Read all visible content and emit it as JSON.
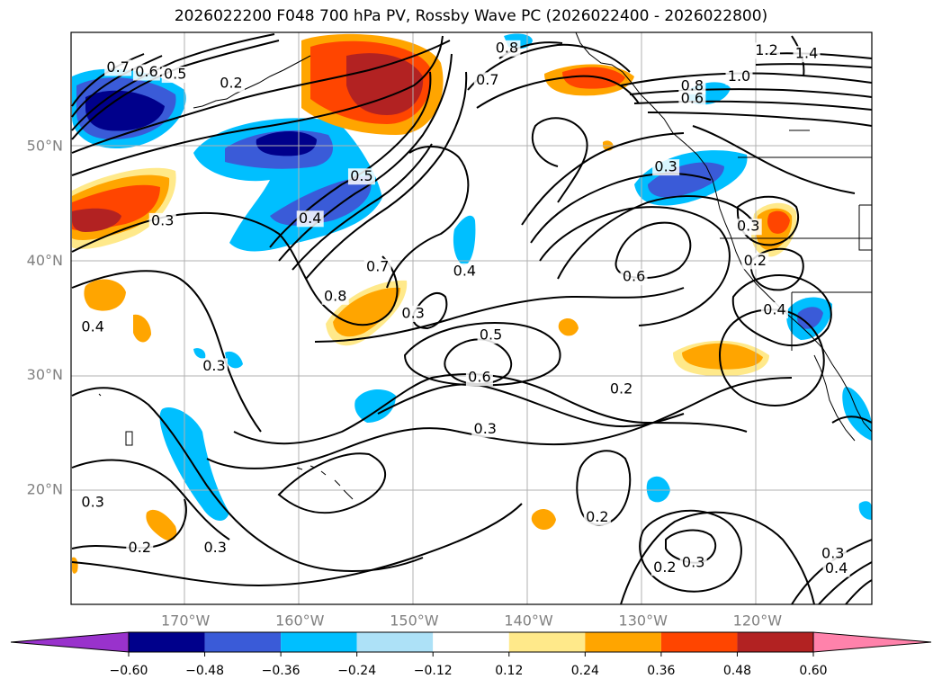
{
  "title": "2026022200 F048 700 hPa PV, Rossby Wave PC (2026022400 - 2026022800)",
  "lat_labels": [
    {
      "lat": 50,
      "label": "50°N"
    },
    {
      "lat": 40,
      "label": "40°N"
    },
    {
      "lat": 30,
      "label": "30°N"
    },
    {
      "lat": 20,
      "label": "20°N"
    }
  ],
  "lon_labels": [
    {
      "lon": -170,
      "label": "170°W"
    },
    {
      "lon": -160,
      "label": "160°W"
    },
    {
      "lon": -150,
      "label": "150°W"
    },
    {
      "lon": -140,
      "label": "140°W"
    },
    {
      "lon": -130,
      "label": "130°W"
    },
    {
      "lon": -120,
      "label": "120°W"
    }
  ],
  "contour_labels": [
    {
      "text": "0.7",
      "lon": -175.9,
      "lat": 56.9
    },
    {
      "text": "0.6",
      "lon": -173.4,
      "lat": 56.5
    },
    {
      "text": "0.5",
      "lon": -170.9,
      "lat": 56.3
    },
    {
      "text": "0.2",
      "lon": -166.0,
      "lat": 55.5
    },
    {
      "text": "0.5",
      "lon": -154.6,
      "lat": 47.4
    },
    {
      "text": "0.4",
      "lon": -159.1,
      "lat": 43.7
    },
    {
      "text": "0.3",
      "lon": -172.0,
      "lat": 43.5
    },
    {
      "text": "0.7",
      "lon": -153.2,
      "lat": 39.5
    },
    {
      "text": "0.8",
      "lon": -156.9,
      "lat": 36.9
    },
    {
      "text": "0.3",
      "lon": -150.1,
      "lat": 35.4
    },
    {
      "text": "0.4",
      "lon": -145.6,
      "lat": 39.1
    },
    {
      "text": "0.5",
      "lon": -143.3,
      "lat": 33.5
    },
    {
      "text": "0.6",
      "lon": -144.3,
      "lat": 29.8
    },
    {
      "text": "0.3",
      "lon": -143.8,
      "lat": 25.3
    },
    {
      "text": "0.4",
      "lon": -178.1,
      "lat": 34.2
    },
    {
      "text": "0.3",
      "lon": -167.5,
      "lat": 30.8
    },
    {
      "text": "0.3",
      "lon": -178.1,
      "lat": 18.9
    },
    {
      "text": "0.2",
      "lon": -174.0,
      "lat": 14.9
    },
    {
      "text": "0.3",
      "lon": -167.4,
      "lat": 14.9
    },
    {
      "text": "0.8",
      "lon": -141.9,
      "lat": 58.6
    },
    {
      "text": "0.7",
      "lon": -143.6,
      "lat": 55.8
    },
    {
      "text": "0.8",
      "lon": -125.7,
      "lat": 55.3
    },
    {
      "text": "0.6",
      "lon": -125.7,
      "lat": 54.2
    },
    {
      "text": "1.0",
      "lon": -121.6,
      "lat": 56.1
    },
    {
      "text": "1.4",
      "lon": -115.7,
      "lat": 58.1
    },
    {
      "text": "1.2",
      "lon": -119.2,
      "lat": 58.4
    },
    {
      "text": "0.3",
      "lon": -128.0,
      "lat": 48.2
    },
    {
      "text": "0.6",
      "lon": -130.8,
      "lat": 38.6
    },
    {
      "text": "0.2",
      "lon": -131.9,
      "lat": 28.8
    },
    {
      "text": "0.3",
      "lon": -120.8,
      "lat": 43.0
    },
    {
      "text": "0.2",
      "lon": -120.2,
      "lat": 40.0
    },
    {
      "text": "0.4",
      "lon": -118.5,
      "lat": 35.7
    },
    {
      "text": "0.2",
      "lon": -134.0,
      "lat": 17.6
    },
    {
      "text": "0.2",
      "lon": -128.1,
      "lat": 13.2
    },
    {
      "text": "0.3",
      "lon": -125.6,
      "lat": 13.6
    },
    {
      "text": "0.3",
      "lon": -113.4,
      "lat": 14.4
    },
    {
      "text": "0.4",
      "lon": -113.1,
      "lat": 13.1
    }
  ],
  "colorbar": {
    "ticks": [
      "−0.60",
      "−0.48",
      "−0.36",
      "−0.24",
      "−0.12",
      "0.12",
      "0.24",
      "0.36",
      "0.48",
      "0.60"
    ],
    "colors": [
      "#9932CC",
      "#00008B",
      "#3A5BD8",
      "#00BFFF",
      "#ADE1F7",
      "#FFFFFF",
      "#FFE98A",
      "#FFA500",
      "#FF4500",
      "#B22222",
      "#FF82AB"
    ]
  }
}
